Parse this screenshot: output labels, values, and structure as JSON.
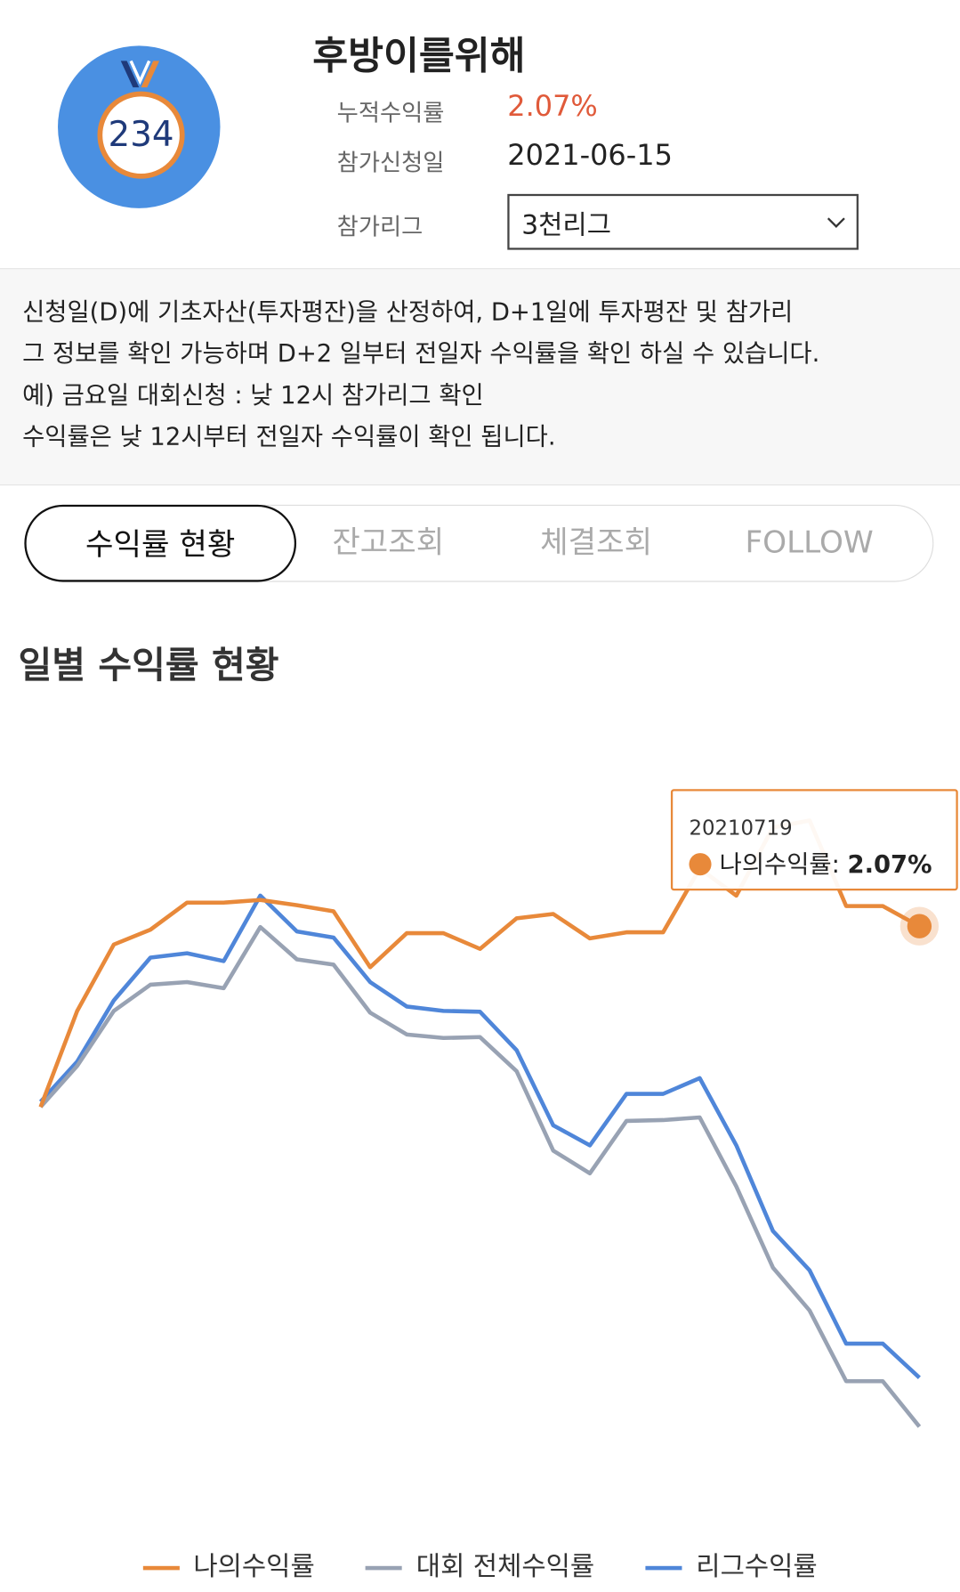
{
  "profile": {
    "rank": "234",
    "name": "후방이를위해",
    "fields": [
      {
        "label": "누적수익률",
        "value": "2.07%"
      },
      {
        "label": "참가신청일",
        "value": "2021-06-15"
      }
    ],
    "league_label": "참가리그",
    "league_select": "3천리그"
  },
  "notice": [
    "신청일(D)에 기초자산(투자평잔)을 산정하여, D+1일에 투자평잔 및 참가리",
    "그 정보를 확인 가능하며 D+2 일부터 전일자 수익률을 확인 하실 수 있습니다.",
    "예) 금요일 대회신청 : 낮 12시 참가리그 확인",
    "수익률은 낮 12시부터 전일자 수익률이 확인 됩니다."
  ],
  "tabs": [
    "수익률 현황",
    "잔고조회",
    "체결조회",
    "FOLLOW"
  ],
  "section_title": "일별 수익률 현황",
  "tooltip_label": "나의수익률:",
  "chart_data": {
    "type": "line",
    "ylim": [
      -4.5,
      4.5
    ],
    "categories": [
      null,
      null,
      null,
      null,
      null,
      null,
      null,
      null,
      null,
      null,
      null,
      null,
      null,
      null,
      null,
      null,
      null,
      null,
      null,
      null,
      null,
      null,
      null,
      null,
      "20210719"
    ],
    "series": [
      {
        "name": "나의수익률",
        "color": "#e8893a",
        "values": [
          0,
          1.1,
          1.86,
          2.03,
          2.34,
          2.34,
          2.37,
          2.31,
          2.24,
          1.6,
          1.99,
          1.99,
          1.81,
          2.16,
          2.21,
          1.93,
          2.0,
          2.0,
          2.73,
          2.42,
          3.2,
          3.28,
          2.3,
          2.3,
          2.07
        ],
        "value_labels": [
          null,
          null,
          null,
          null,
          null,
          null,
          null,
          null,
          null,
          null,
          null,
          null,
          null,
          null,
          null,
          null,
          null,
          null,
          null,
          null,
          null,
          null,
          null,
          null,
          "2.07%"
        ]
      },
      {
        "name": "대회 전체수익률",
        "color": "#98a2b3",
        "values": [
          0,
          0.47,
          1.1,
          1.4,
          1.43,
          1.36,
          2.06,
          1.69,
          1.63,
          1.08,
          0.83,
          0.79,
          0.8,
          0.41,
          -0.5,
          -0.76,
          -0.16,
          -0.15,
          -0.12,
          -0.91,
          -1.84,
          -2.33,
          -3.14,
          -3.14,
          -3.66
        ]
      },
      {
        "name": "리그수익률",
        "color": "#4f86d9",
        "values": [
          0.06,
          0.52,
          1.22,
          1.71,
          1.76,
          1.67,
          2.42,
          2.01,
          1.94,
          1.43,
          1.15,
          1.1,
          1.09,
          0.65,
          -0.21,
          -0.44,
          0.15,
          0.15,
          0.33,
          -0.44,
          -1.42,
          -1.87,
          -2.71,
          -2.71,
          -3.1
        ]
      }
    ]
  }
}
